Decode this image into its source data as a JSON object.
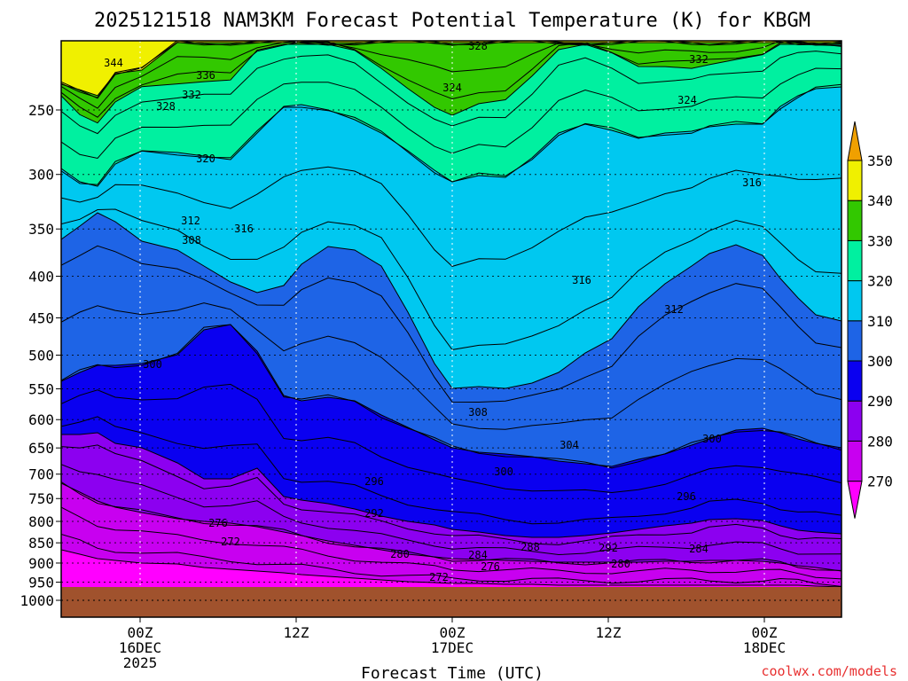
{
  "chart_data": {
    "type": "contour",
    "title": "2025121518 NAM3KM Forecast Potential Temperature (K) for KBGM",
    "xlabel": "Forecast Time (UTC)",
    "ylabel": "",
    "credit": "coolwx.com/models",
    "y_axis": {
      "scale": "pressure (hPa, log)",
      "ticks": [
        "250",
        "300",
        "350",
        "400",
        "450",
        "500",
        "550",
        "600",
        "650",
        "700",
        "750",
        "800",
        "850",
        "900",
        "950",
        "1000"
      ]
    },
    "x_axis": {
      "ticks": [
        {
          "line1": "00Z",
          "line2": "16DEC",
          "line3": "2025"
        },
        {
          "line1": "12Z",
          "line2": "",
          "line3": ""
        },
        {
          "line1": "00Z",
          "line2": "17DEC",
          "line3": ""
        },
        {
          "line1": "12Z",
          "line2": "",
          "line3": ""
        },
        {
          "line1": "00Z",
          "line2": "18DEC",
          "line3": ""
        }
      ]
    },
    "colorbar": {
      "levels": [
        "270",
        "280",
        "290",
        "300",
        "310",
        "320",
        "330",
        "340",
        "350"
      ],
      "colors": [
        "#ff00ff",
        "#c800f0",
        "#8c00f0",
        "#0a00f0",
        "#1e64e6",
        "#00c8f0",
        "#00f0a0",
        "#32c800",
        "#f0f000",
        "#f0a000"
      ]
    },
    "contour_labels": [
      "344",
      "336",
      "332",
      "328",
      "328",
      "324",
      "332",
      "324",
      "320",
      "316",
      "312",
      "316",
      "308",
      "316",
      "312",
      "300",
      "308",
      "304",
      "300",
      "296",
      "300",
      "296",
      "292",
      "276",
      "272",
      "280",
      "284",
      "288",
      "292",
      "284",
      "276",
      "280",
      "272"
    ]
  }
}
